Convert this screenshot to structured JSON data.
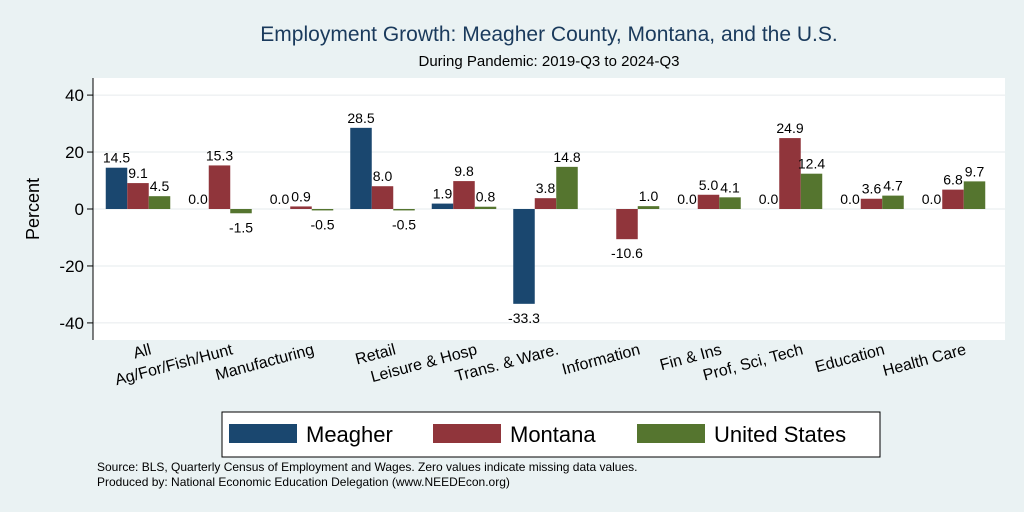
{
  "chart_data": {
    "type": "bar",
    "title": "Employment Growth: Meagher County, Montana, and the U.S.",
    "subtitle": "During Pandemic: 2019-Q3 to 2024-Q3",
    "ylabel": "Percent",
    "ylim": [
      -46,
      46
    ],
    "yticks": [
      -40,
      -20,
      0,
      20,
      40
    ],
    "grid": true,
    "legend_position": "bottom",
    "categories": [
      "All",
      "Ag/For/Fish/Hunt",
      "Manufacturing",
      "Retail",
      "Leisure & Hosp",
      "Trans. & Ware.",
      "Information",
      "Fin & Ins",
      "Prof, Sci, Tech",
      "Education",
      "Health Care"
    ],
    "series": [
      {
        "name": "Meagher",
        "color": "#1a476f",
        "values": [
          14.5,
          0.0,
          0.0,
          28.5,
          1.9,
          -33.3,
          0.0,
          0.0,
          0.0,
          0.0,
          0.0
        ],
        "labels": [
          "14.5",
          "0.0",
          "0.0",
          "28.5",
          "1.9",
          "-33.3",
          "",
          "0.0",
          "0.0",
          "0.0",
          "0.0"
        ]
      },
      {
        "name": "Montana",
        "color": "#90353b",
        "values": [
          9.1,
          15.3,
          0.9,
          8.0,
          9.8,
          3.8,
          -10.6,
          5.0,
          24.9,
          3.6,
          6.8
        ],
        "labels": [
          "9.1",
          "15.3",
          "0.9",
          "8.0",
          "9.8",
          "3.8",
          "-10.6",
          "5.0",
          "24.9",
          "3.6",
          "6.8"
        ]
      },
      {
        "name": "United States",
        "color": "#55752f",
        "values": [
          4.5,
          -1.5,
          -0.5,
          -0.5,
          0.8,
          14.8,
          1.0,
          4.1,
          12.4,
          4.7,
          9.7
        ],
        "labels": [
          "4.5",
          "-1.5",
          "-0.5",
          "-0.5",
          "0.8",
          "14.8",
          "1.0",
          "4.1",
          "12.4",
          "4.7",
          "9.7"
        ]
      }
    ]
  },
  "footer": {
    "source": "Source: BLS, Quarterly Census of Employment and Wages. Zero values indicate missing data values.",
    "produced": "Produced by: National Economic Education Delegation (www.NEEDEcon.org)"
  }
}
